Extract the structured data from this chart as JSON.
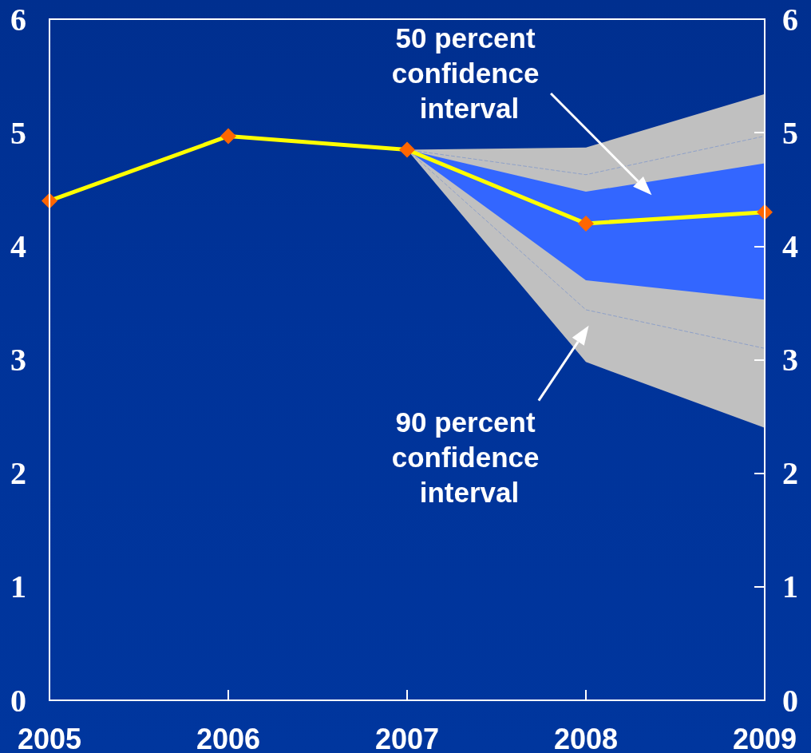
{
  "chart_data": {
    "type": "line",
    "categories": [
      "2005",
      "2006",
      "2007",
      "2008",
      "2009"
    ],
    "ylim": [
      0,
      6
    ],
    "yticks": [
      0,
      1,
      2,
      3,
      4,
      5,
      6
    ],
    "y2lim": [
      0,
      6
    ],
    "y2ticks": [
      0,
      1,
      2,
      3,
      4,
      5,
      6
    ],
    "annotations": [
      {
        "text": "50 percent confidence interval",
        "y": 4.45
      },
      "90 percent confidence interval"
    ],
    "series": [
      {
        "type": "area",
        "color": "#c0c0c0",
        "values": [
          null,
          null,
          null,
          null,
          null
        ],
        "lower": [
          null,
          null,
          4.85,
          2.98,
          2.4
        ],
        "upper": [
          null,
          null,
          4.85,
          4.87,
          5.34
        ]
      },
      {
        "color": "#8ea0c8",
        "line_style": "dashed",
        "marker": "none",
        "values": [
          null,
          null,
          4.85,
          4.63,
          4.97
        ]
      },
      {
        "color": "#8ea0c8",
        "line_style": "dashed",
        "marker": "none",
        "values": [
          null,
          null,
          4.85,
          3.44,
          3.1
        ]
      },
      {
        "type": "area",
        "color": "#3366ff",
        "values": [
          null,
          null,
          null,
          null,
          null
        ],
        "lower": [
          null,
          null,
          4.85,
          3.7,
          3.53
        ],
        "upper": [
          null,
          null,
          4.85,
          4.48,
          4.73
        ]
      },
      {
        "color": "#ffff00",
        "colors": [
          "#ff6600",
          "#ff6600",
          "#ff6600",
          "#ff6600",
          "#ff6600"
        ],
        "marker": "diamond",
        "values": [
          4.4,
          4.97,
          4.85,
          4.2,
          4.3
        ]
      }
    ]
  }
}
